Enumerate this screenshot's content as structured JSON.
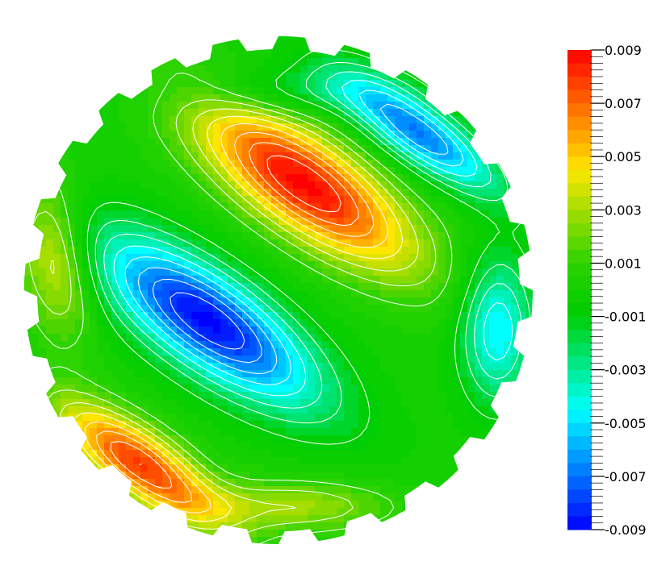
{
  "chart_data": {
    "type": "heatmap",
    "title": "",
    "colormap": "rainbow (blue to red)",
    "color_range": [
      -0.009,
      0.009
    ],
    "contour_lines": true,
    "contour_line_color": "#ffffff",
    "domain_shape": "stepped circular disk",
    "legend_placement": "right",
    "colorbar_tick_labels": [
      "0.009",
      "0.007",
      "0.005",
      "0.003",
      "0.001",
      "-0.001",
      "-0.003",
      "-0.005",
      "-0.007",
      "-0.009"
    ],
    "extrema": [
      {
        "kind": "max",
        "value": 0.009,
        "x": 0.1,
        "y": 0.42,
        "sx": 0.13,
        "sy": 0.36,
        "rot": 55
      },
      {
        "kind": "min",
        "value": -0.009,
        "x": -0.28,
        "y": -0.12,
        "sx": 0.13,
        "sy": 0.36,
        "rot": 55
      },
      {
        "kind": "min",
        "value": -0.007,
        "x": 0.55,
        "y": 0.62,
        "sx": 0.08,
        "sy": 0.26,
        "rot": 55
      },
      {
        "kind": "max",
        "value": 0.008,
        "x": -0.55,
        "y": -0.68,
        "sx": 0.09,
        "sy": 0.26,
        "rot": 55
      },
      {
        "kind": "max",
        "value": 0.004,
        "x": -0.88,
        "y": 0.14,
        "sx": 0.1,
        "sy": 0.22,
        "rot": 10
      },
      {
        "kind": "min",
        "value": -0.005,
        "x": 0.86,
        "y": -0.15,
        "sx": 0.1,
        "sy": 0.2,
        "rot": 0
      },
      {
        "kind": "max",
        "value": 0.003,
        "x": 0.05,
        "y": -0.85,
        "sx": 0.28,
        "sy": 0.07,
        "rot": 0
      },
      {
        "kind": "min",
        "value": -0.002,
        "x": 0.0,
        "y": 0.78,
        "sx": 0.3,
        "sy": 0.07,
        "rot": 0
      }
    ]
  }
}
